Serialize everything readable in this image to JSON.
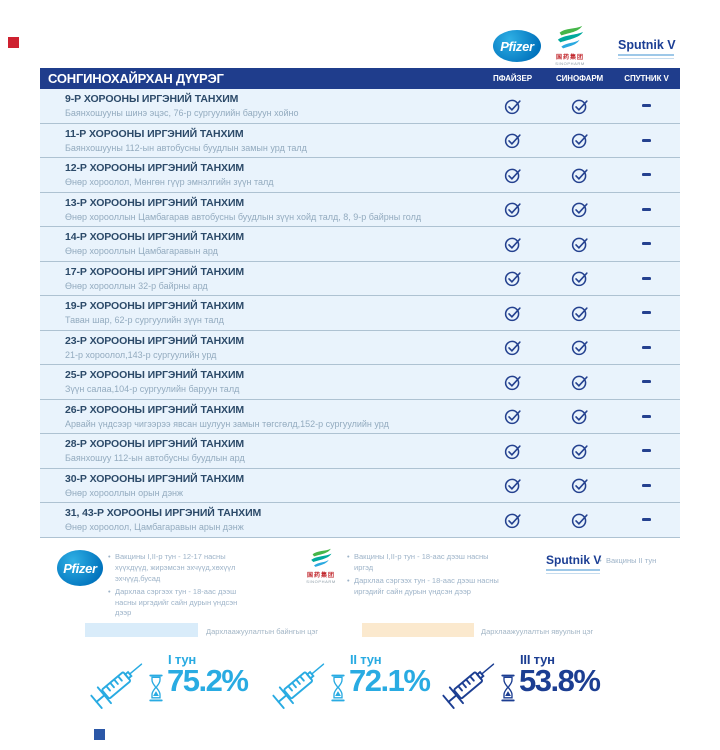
{
  "table": {
    "title": "СОНГИНОХАЙРХАН ДҮҮРЭГ",
    "columns": [
      "ПФАЙЗЕР",
      "СИНОФАРМ",
      "СПУТНИК V"
    ],
    "rows": [
      {
        "name": "9-Р ХОРООНЫ ИРГЭНИЙ ТАНХИМ",
        "address": "Баянхошууны шинэ эцэс, 76-р сургуулийн баруун хойно",
        "pfizer": true,
        "sinopharm": true,
        "sputnik": false
      },
      {
        "name": "11-Р ХОРООНЫ ИРГЭНИЙ ТАНХИМ",
        "address": "Баянхошууны 112-ын автобусны буудлын замын урд талд",
        "pfizer": true,
        "sinopharm": true,
        "sputnik": false
      },
      {
        "name": "12-Р ХОРООНЫ ИРГЭНИЙ ТАНХИМ",
        "address": "Өнөр хороолол, Мөнгөн гүүр эмнэлгийн зүүн талд",
        "pfizer": true,
        "sinopharm": true,
        "sputnik": false
      },
      {
        "name": "13-Р ХОРООНЫ ИРГЭНИЙ ТАНХИМ",
        "address": "Өнөр хорооллын Цамбагарав автобусны буудлын зүүн хойд талд, 8, 9-р байрны голд",
        "pfizer": true,
        "sinopharm": true,
        "sputnik": false
      },
      {
        "name": "14-Р ХОРООНЫ ИРГЭНИЙ ТАНХИМ",
        "address": "Өнөр хорооллын Цамбагаравын ард",
        "pfizer": true,
        "sinopharm": true,
        "sputnik": false
      },
      {
        "name": "17-Р ХОРООНЫ ИРГЭНИЙ ТАНХИМ",
        "address": "Өнөр хорооллын 32-р байрны ард",
        "pfizer": true,
        "sinopharm": true,
        "sputnik": false
      },
      {
        "name": "19-Р ХОРООНЫ ИРГЭНИЙ ТАНХИМ",
        "address": "Таван шар, 62-р сургуулийн зүүн талд",
        "pfizer": true,
        "sinopharm": true,
        "sputnik": false
      },
      {
        "name": "23-Р ХОРООНЫ ИРГЭНИЙ ТАНХИМ",
        "address": "21-р хороолол,143-р сургуулийн урд",
        "pfizer": true,
        "sinopharm": true,
        "sputnik": false
      },
      {
        "name": "25-Р ХОРООНЫ ИРГЭНИЙ ТАНХИМ",
        "address": "Зүүн салаа,104-р сургуулийн баруун талд",
        "pfizer": true,
        "sinopharm": true,
        "sputnik": false
      },
      {
        "name": "26-Р ХОРООНЫ ИРГЭНИЙ ТАНХИМ",
        "address": "Арвайн үндсээр чигээрээ явсан шулуун замын төгсгөлд,152-р сургуулийн урд",
        "pfizer": true,
        "sinopharm": true,
        "sputnik": false
      },
      {
        "name": "28-Р ХОРООНЫ ИРГЭНИЙ ТАНХИМ",
        "address": "Баянхошуу 112-ын автобусны буудлын ард",
        "pfizer": true,
        "sinopharm": true,
        "sputnik": false
      },
      {
        "name": "30-Р ХОРООНЫ ИРГЭНИЙ ТАНХИМ",
        "address": "Өнөр хорооллын орын дэнж",
        "pfizer": true,
        "sinopharm": true,
        "sputnik": false
      },
      {
        "name": "31, 43-Р ХОРООНЫ ИРГЭНИЙ ТАНХИМ",
        "address": "Өнөр хороолол, Цамбагаравын арын дэнж",
        "pfizer": true,
        "sinopharm": true,
        "sputnik": false
      }
    ]
  },
  "logos": {
    "pfizer": "Pfizer",
    "sinopharm_cn": "国药集团",
    "sinopharm_en": "SINOPHARM",
    "sputnik": "Sputnik V"
  },
  "footnotes": {
    "pfizer": [
      "Вакцины I,II-р тун - 12-17 насны хүүхдүүд, жирэмсэн эхчүүд,хөхүүл эхчүүд,бусад",
      "Дархлаа сэргээх тун - 18-аас дээш насны иргэдийг сайн дурын үндсэн дээр"
    ],
    "sinopharm": [
      "Вакцины I,II-р тун - 18-аас дээш насны иргэд",
      "Дархлаа сэргээх тун - 18-аас дээш насны иргэдийг сайн дурын үндсэн дээр"
    ],
    "sputnik": [
      "Вакцины II тун"
    ]
  },
  "legend": [
    {
      "label": "Дархлаажуулалтын байнгын цэг",
      "color": "#d9ecfa"
    },
    {
      "label": "Дархлаажуулалтын явуулын цэг",
      "color": "#fbe9ce"
    }
  ],
  "stats": [
    {
      "label": "I тун",
      "value": "75.2%",
      "color": "#29abe2"
    },
    {
      "label": "II тун",
      "value": "72.1%",
      "color": "#29abe2"
    },
    {
      "label": "III тун",
      "value": "53.8%",
      "color": "#1c3e92"
    }
  ]
}
